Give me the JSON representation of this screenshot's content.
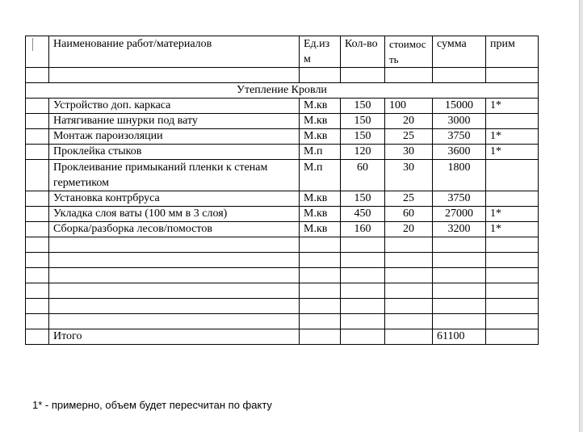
{
  "headers": {
    "num": "",
    "name": "Наименование работ/материалов",
    "unit": "Ед.изм",
    "qty": "Кол-во",
    "price": "стоимость",
    "sum": "сумма",
    "note": "прим"
  },
  "section_title": "Утепление Кровли",
  "rows": [
    {
      "name": "Устройство доп. каркаса",
      "unit": "М.кв",
      "qty": "150",
      "price": "100",
      "sum": "15000",
      "note": "1*"
    },
    {
      "name": "Натягивание шнурки под вату",
      "unit": "М.кв",
      "qty": "150",
      "price": "20",
      "sum": "3000",
      "note": ""
    },
    {
      "name": "Монтаж пароизоляции",
      "unit": "М.кв",
      "qty": "150",
      "price": "25",
      "sum": "3750",
      "note": "1*"
    },
    {
      "name": "Проклейка стыков",
      "unit": "М.п",
      "qty": "120",
      "price": "30",
      "sum": "3600",
      "note": "1*"
    },
    {
      "name": "Проклеивание примыканий пленки к стенам герметиком",
      "unit": "М.п",
      "qty": "60",
      "price": "30",
      "sum": "1800",
      "note": ""
    },
    {
      "name": "Установка контрбруса",
      "unit": "М.кв",
      "qty": "150",
      "price": "25",
      "sum": "3750",
      "note": ""
    },
    {
      "name": "Укладка слоя ваты (100 мм в 3 слоя)",
      "unit": "М.кв",
      "qty": "450",
      "price": "60",
      "sum": "27000",
      "note": "1*"
    },
    {
      "name": "Сборка/разборка лесов/помостов",
      "unit": "М.кв",
      "qty": "160",
      "price": "20",
      "sum": "3200",
      "note": "1*"
    }
  ],
  "total": {
    "label": "Итого",
    "sum": "61100"
  },
  "footnote": "1* - примерно, объем будет пересчитан по факту"
}
